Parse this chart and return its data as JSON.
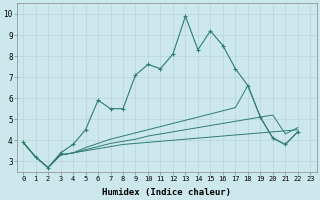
{
  "xlabel": "Humidex (Indice chaleur)",
  "bg_color": "#cde8ed",
  "line_color": "#2d7d6e",
  "grid_color": "#b8d4d8",
  "xlim": [
    -0.5,
    23.5
  ],
  "ylim": [
    2.5,
    10.5
  ],
  "xticks": [
    0,
    1,
    2,
    3,
    4,
    5,
    6,
    7,
    8,
    9,
    10,
    11,
    12,
    13,
    14,
    15,
    16,
    17,
    18,
    19,
    20,
    21,
    22,
    23
  ],
  "yticks": [
    3,
    4,
    5,
    6,
    7,
    8,
    9,
    10
  ],
  "series1_y": [
    3.9,
    3.2,
    2.7,
    3.4,
    3.8,
    4.5,
    5.9,
    5.5,
    5.5,
    7.1,
    7.6,
    7.4,
    8.1,
    9.9,
    8.3,
    9.2,
    8.5,
    7.4,
    6.6,
    5.1,
    4.1,
    3.8,
    4.4,
    null
  ],
  "series2_y": [
    3.9,
    3.2,
    2.7,
    3.3,
    3.4,
    3.5,
    3.6,
    3.7,
    3.8,
    3.85,
    3.9,
    3.95,
    4.0,
    4.05,
    4.1,
    4.15,
    4.2,
    4.25,
    4.3,
    4.35,
    4.4,
    4.45,
    4.5,
    null
  ],
  "series3_y": [
    3.9,
    3.2,
    2.7,
    3.3,
    3.4,
    3.55,
    3.7,
    3.85,
    3.95,
    4.05,
    4.2,
    4.3,
    4.4,
    4.5,
    4.6,
    4.7,
    4.8,
    4.9,
    5.0,
    5.1,
    5.2,
    4.3,
    4.6,
    null
  ],
  "series4_y": [
    3.9,
    3.2,
    2.7,
    3.3,
    3.4,
    3.65,
    3.85,
    4.05,
    4.2,
    4.35,
    4.5,
    4.65,
    4.8,
    4.95,
    5.1,
    5.25,
    5.4,
    5.55,
    6.6,
    5.1,
    4.1,
    3.8,
    4.4,
    null
  ]
}
